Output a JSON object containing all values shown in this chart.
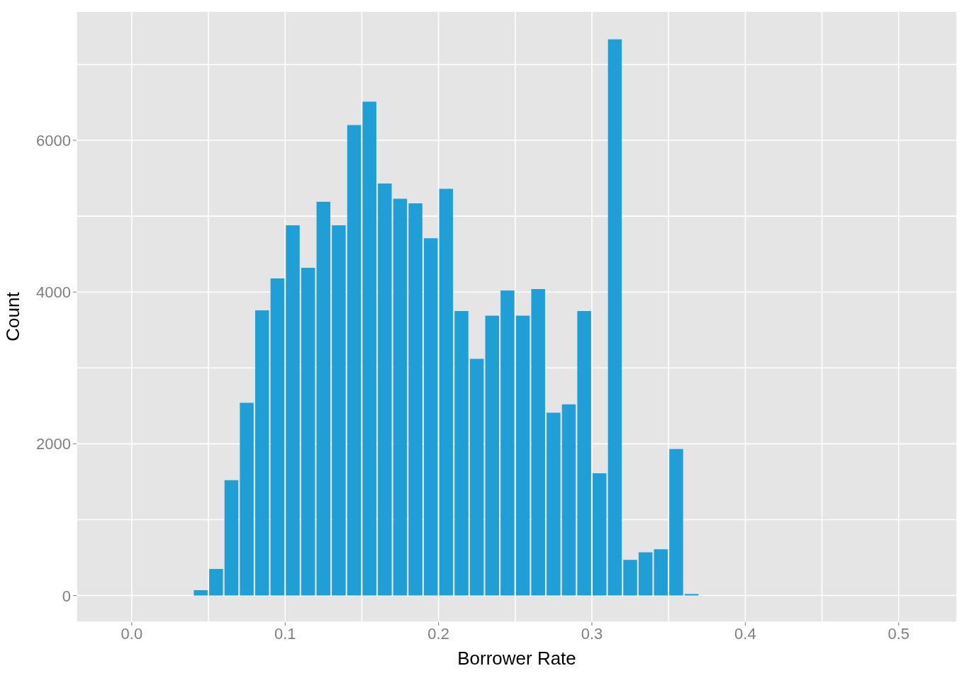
{
  "chart_data": {
    "type": "histogram",
    "xlabel": "Borrower Rate",
    "ylabel": "Count",
    "color": "#1f9fd6",
    "bins": [
      0,
      0.01,
      0.02,
      0.03,
      0.04,
      0.05,
      0.06,
      0.07,
      0.08,
      0.09,
      0.1,
      0.11,
      0.12,
      0.13,
      0.14,
      0.15,
      0.16,
      0.17,
      0.18,
      0.19,
      0.2,
      0.21,
      0.22,
      0.23,
      0.24,
      0.25,
      0.26,
      0.27,
      0.28,
      0.29,
      0.3,
      0.31,
      0.32,
      0.33,
      0.34,
      0.35,
      0.36,
      0.37,
      0.38,
      0.39,
      0.4,
      0.41,
      0.42,
      0.43,
      0.44,
      0.45,
      0.46,
      0.47,
      0.48,
      0.49,
      0.5
    ],
    "values": [
      0,
      0,
      0,
      0,
      70,
      350,
      1520,
      2540,
      3760,
      4180,
      4880,
      4320,
      5190,
      4880,
      6200,
      6510,
      5430,
      5230,
      5170,
      4710,
      5360,
      3750,
      3120,
      3690,
      4020,
      3690,
      4040,
      2410,
      2520,
      3750,
      1610,
      7330,
      470,
      570,
      610,
      1930,
      20,
      0,
      0,
      0,
      0,
      0,
      0,
      0,
      0,
      0,
      0,
      0,
      0,
      0
    ],
    "xlim": [
      -0.036,
      0.538
    ],
    "xticks": [
      {
        "value": 0,
        "label": "0.0"
      },
      {
        "value": 0.05,
        "label": null
      },
      {
        "value": 0.1,
        "label": "0.1"
      },
      {
        "value": 0.15,
        "label": null
      },
      {
        "value": 0.2,
        "label": "0.2"
      },
      {
        "value": 0.25,
        "label": null
      },
      {
        "value": 0.3,
        "label": "0.3"
      },
      {
        "value": 0.35,
        "label": null
      },
      {
        "value": 0.4,
        "label": "0.4"
      },
      {
        "value": 0.45,
        "label": null
      },
      {
        "value": 0.5,
        "label": "0.5"
      }
    ],
    "ylim": [
      -350,
      7700
    ],
    "yticks": [
      0,
      {
        "value": 1000,
        "label": null
      },
      2000,
      {
        "value": 3000,
        "label": null
      },
      4000,
      {
        "value": 5000,
        "label": null
      },
      6000,
      {
        "value": 7000,
        "label": null
      }
    ],
    "grid": true
  }
}
